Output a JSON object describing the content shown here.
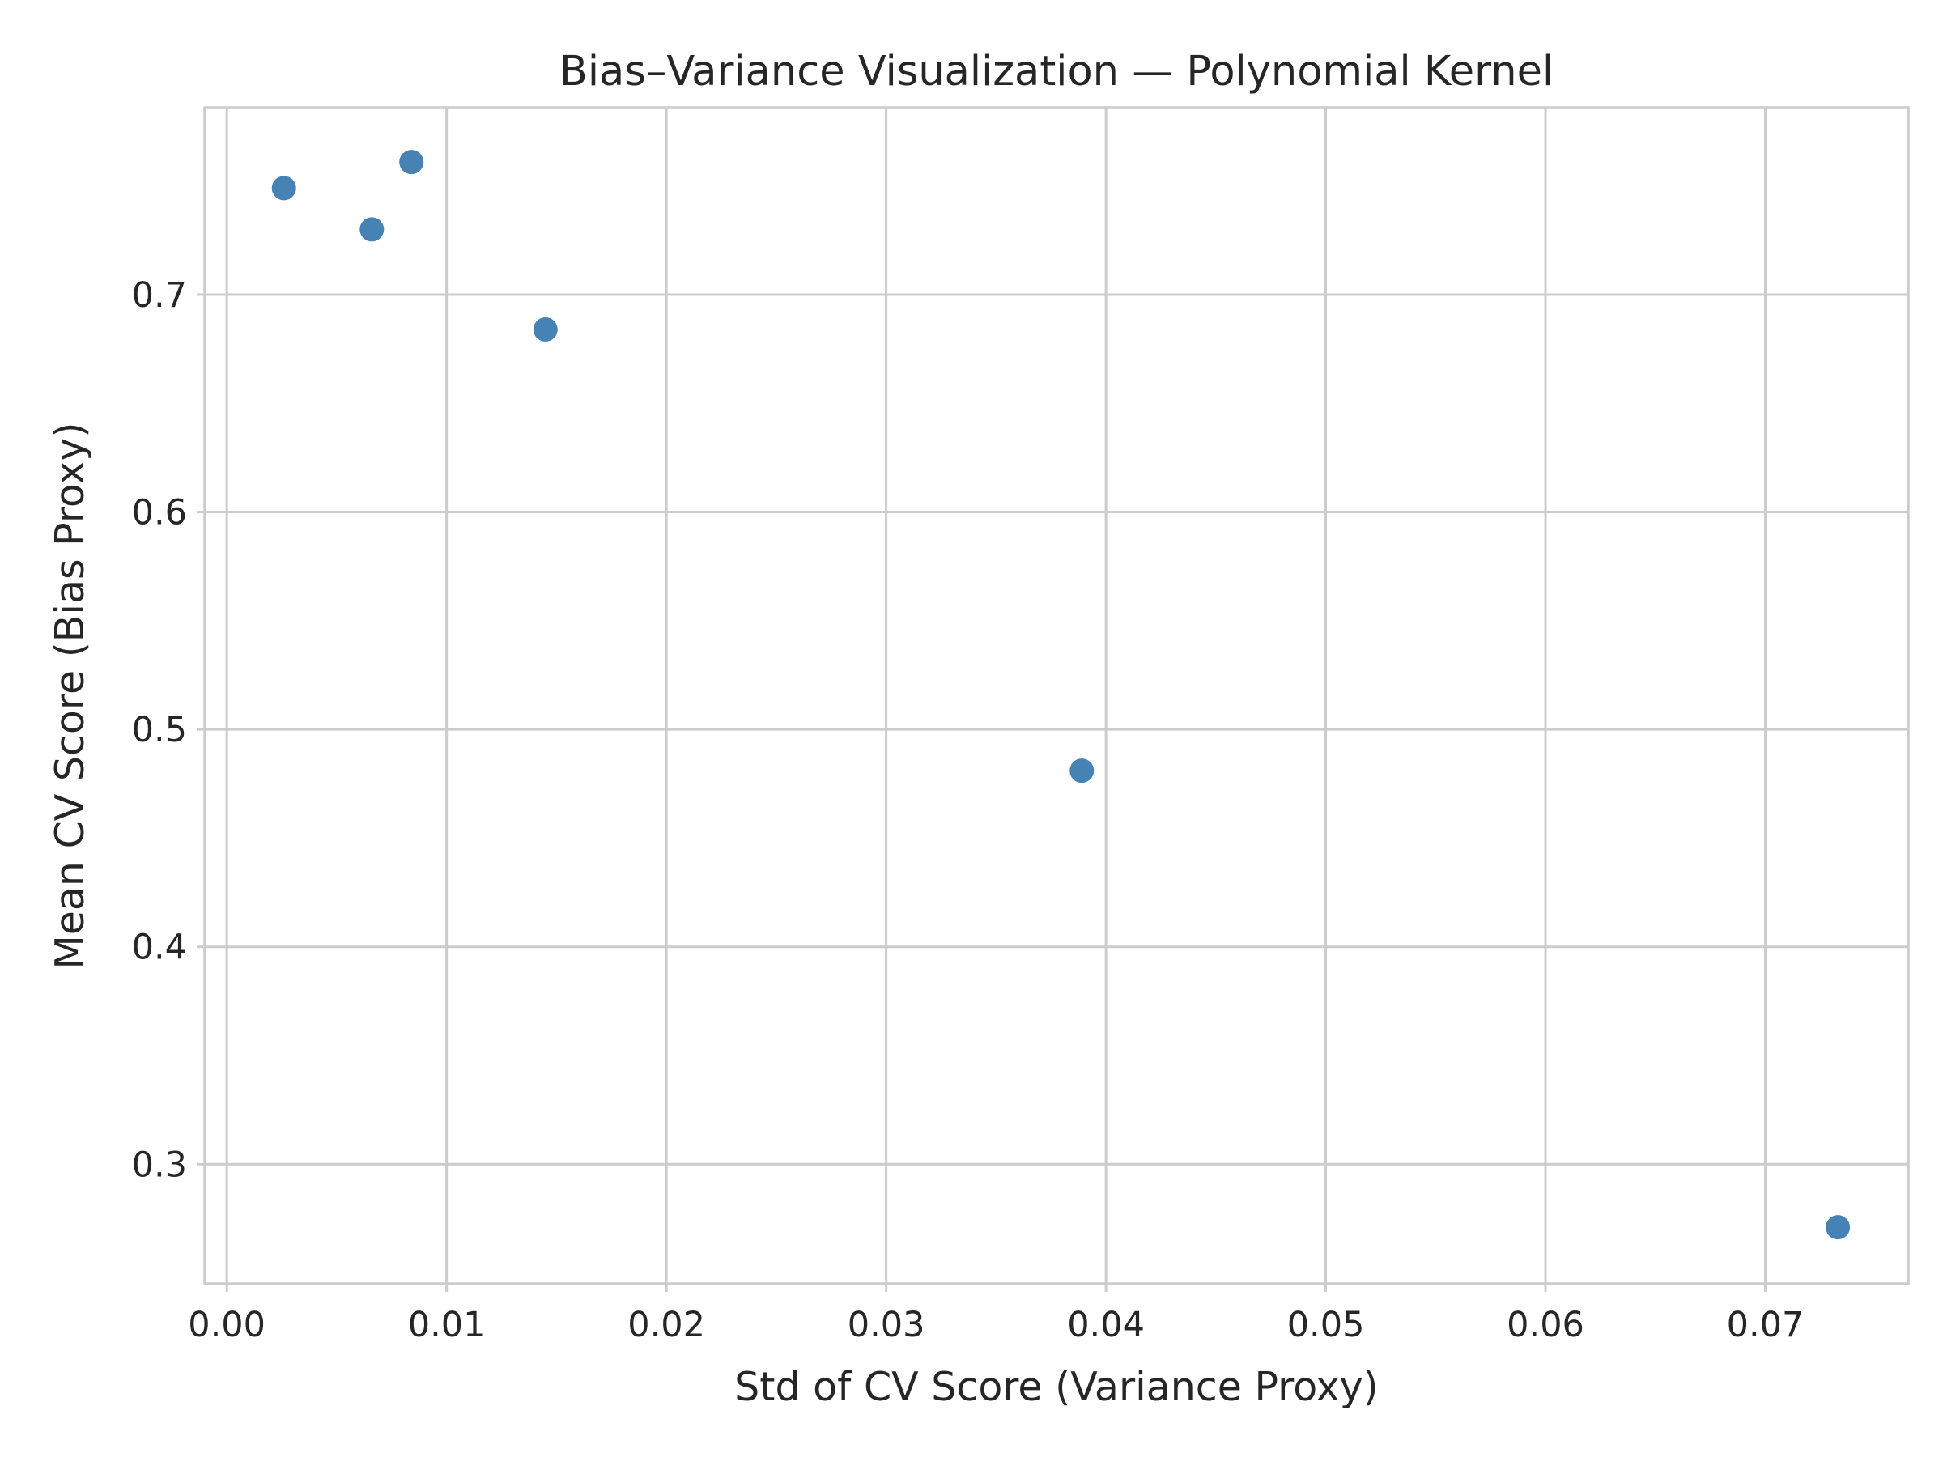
{
  "chart_data": {
    "type": "scatter",
    "title": "Bias–Variance Visualization — Polynomial Kernel",
    "xlabel": "Std of CV Score (Variance Proxy)",
    "ylabel": "Mean CV Score (Bias Proxy)",
    "xlim": [
      -0.001,
      0.0765
    ],
    "ylim": [
      0.245,
      0.786
    ],
    "xticks": [
      0.0,
      0.01,
      0.02,
      0.03,
      0.04,
      0.05,
      0.06,
      0.07
    ],
    "xtick_labels": [
      "0.00",
      "0.01",
      "0.02",
      "0.03",
      "0.04",
      "0.05",
      "0.06",
      "0.07"
    ],
    "yticks": [
      0.3,
      0.4,
      0.5,
      0.6,
      0.7
    ],
    "ytick_labels": [
      "0.3",
      "0.4",
      "0.5",
      "0.6",
      "0.7"
    ],
    "grid": true,
    "series": [
      {
        "color": "#4682b4",
        "points": [
          {
            "x": 0.0026,
            "y": 0.749
          },
          {
            "x": 0.0066,
            "y": 0.73
          },
          {
            "x": 0.0084,
            "y": 0.761
          },
          {
            "x": 0.0145,
            "y": 0.684
          },
          {
            "x": 0.0389,
            "y": 0.481
          },
          {
            "x": 0.0733,
            "y": 0.271
          }
        ]
      }
    ]
  }
}
